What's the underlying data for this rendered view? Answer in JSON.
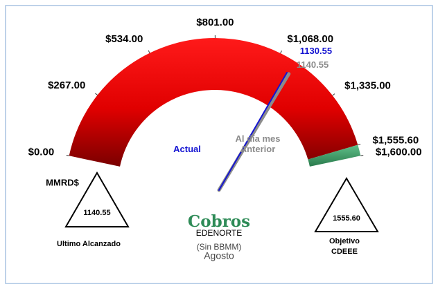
{
  "chart_data": {
    "type": "gauge",
    "unit": "MMRD$",
    "range": [
      0,
      1600
    ],
    "ticks": [
      {
        "value": 0,
        "label": "$0.00"
      },
      {
        "value": 267,
        "label": "$267.00"
      },
      {
        "value": 534,
        "label": "$534.00"
      },
      {
        "value": 801,
        "label": "$801.00"
      },
      {
        "value": 1068,
        "label": "$1,068.00"
      },
      {
        "value": 1335,
        "label": "$1,335.00"
      },
      {
        "value": 1555.6,
        "label": "$1,555.60"
      },
      {
        "value": 1600,
        "label": "$1,600.00"
      }
    ],
    "bands": [
      {
        "from": 0,
        "to": 1555.6,
        "color": "#ff1a1a"
      },
      {
        "from": 1555.6,
        "to": 1600,
        "color": "#3f9e68"
      }
    ],
    "needles": [
      {
        "name": "Al día mes Anterior",
        "value": 1140.55,
        "color": "#8c8c8c"
      },
      {
        "name": "Actual",
        "value": 1130.55,
        "color": "#1414d2"
      }
    ],
    "title": "Cobros",
    "subtitle": "EDENORTE",
    "notes": [
      "(Sin BBMM)",
      "Agosto"
    ],
    "indicators": [
      {
        "label": "Ultimo Alcanzado",
        "value": 1140.55,
        "value_label": "1140.55"
      },
      {
        "label": "Objetivo CDEEE",
        "value": 1555.6,
        "value_label": "1555.60"
      }
    ]
  }
}
